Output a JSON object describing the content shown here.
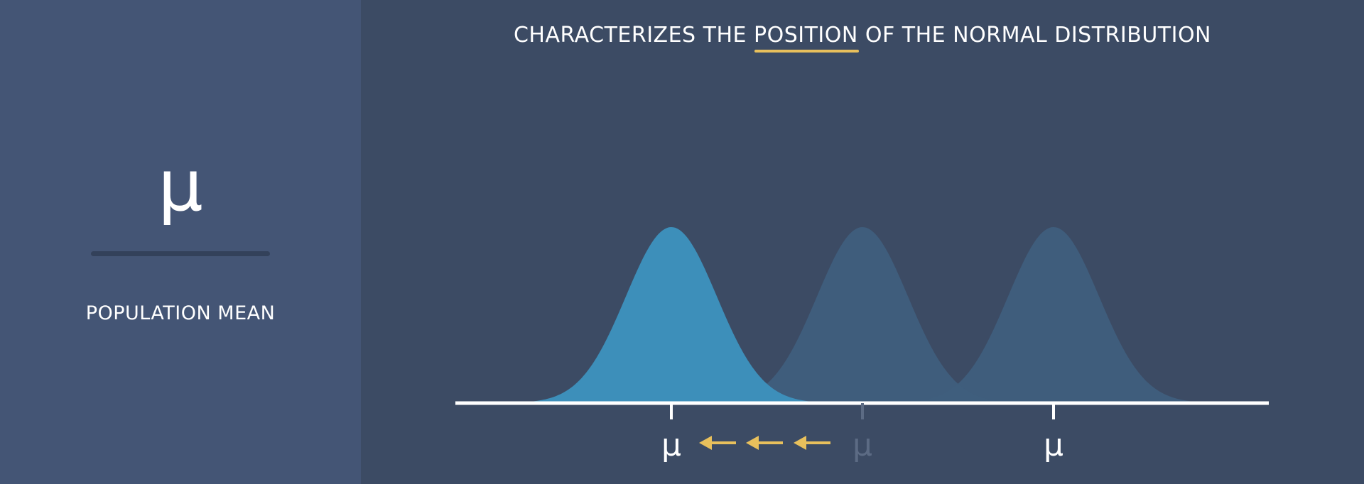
{
  "left": {
    "symbol": "μ",
    "term": "POPULATION MEAN"
  },
  "title": {
    "before": "CHARACTERIZES THE",
    "highlight": "POSITION",
    "after": "OF THE NORMAL DISTRIBUTION"
  },
  "diagram": {
    "mean_label": "μ",
    "colors": {
      "active_curve": "#3d8fba",
      "faded_curve": "#3f5e7d",
      "axis": "#ffffff",
      "faded_tick": "#5c6b84",
      "arrow": "#e8c05c",
      "highlight_underline": "#e8c05c"
    },
    "curves": [
      {
        "name": "active",
        "mean_label": "μ",
        "state": "active"
      },
      {
        "name": "faded-middle",
        "mean_label": "μ",
        "state": "faded"
      },
      {
        "name": "faded-right",
        "mean_label": "μ",
        "state": "normal"
      }
    ],
    "arrows": {
      "count": 3,
      "direction": "left",
      "icon": "arrow-left-icon"
    }
  }
}
